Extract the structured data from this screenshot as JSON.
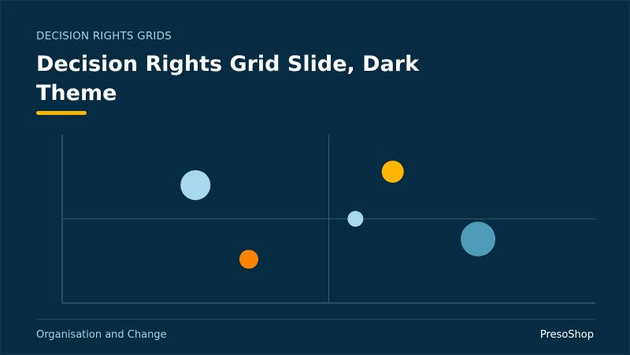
{
  "slide": {
    "eyebrow": "DECISION RIGHTS GRIDS",
    "title": "Decision Rights Grid Slide, Dark Theme",
    "footer_left": "Organisation and Change",
    "footer_right": "PresoShop"
  },
  "colors": {
    "background": "#062c43",
    "accent": "#f5b70a",
    "axis": "#2f5d78",
    "light_blue": "#a8d8f0",
    "orange": "#fb8500",
    "amber": "#ffb703",
    "teal": "#4f9bba"
  },
  "chart_data": {
    "type": "scatter",
    "title": "",
    "xlabel": "",
    "ylabel": "",
    "xlim": [
      0,
      100
    ],
    "ylim": [
      0,
      100
    ],
    "grid": "quadrant dividers",
    "points": [
      {
        "x": 25,
        "y": 70,
        "size": 19,
        "color": "#a8d8f0"
      },
      {
        "x": 35,
        "y": 26,
        "size": 12,
        "color": "#fb8500"
      },
      {
        "x": 62,
        "y": 78,
        "size": 14,
        "color": "#ffb703"
      },
      {
        "x": 55,
        "y": 50,
        "size": 10,
        "color": "#a8d8f0"
      },
      {
        "x": 78,
        "y": 38,
        "size": 22,
        "color": "#4f9bba"
      }
    ]
  }
}
